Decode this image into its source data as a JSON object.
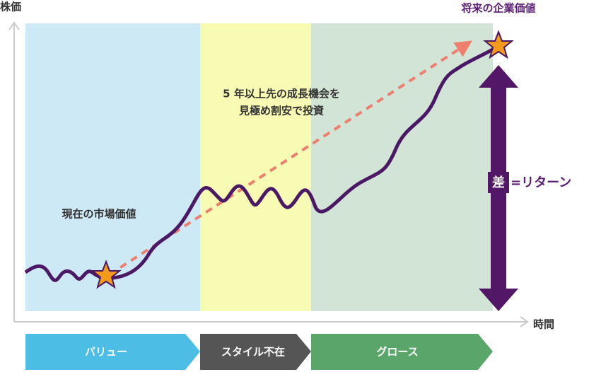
{
  "axes": {
    "y_label": "株価",
    "x_label": "時間"
  },
  "annotations": {
    "future_value": "将来の企業価値",
    "invest": [
      "5 年以上先の成長機会を",
      "見極め割安で投資"
    ],
    "market_value": "現在の市場価値",
    "diff": "差",
    "return": "=リターン"
  },
  "phases": [
    "バリュー",
    "スタイル不在",
    "グロース"
  ]
}
